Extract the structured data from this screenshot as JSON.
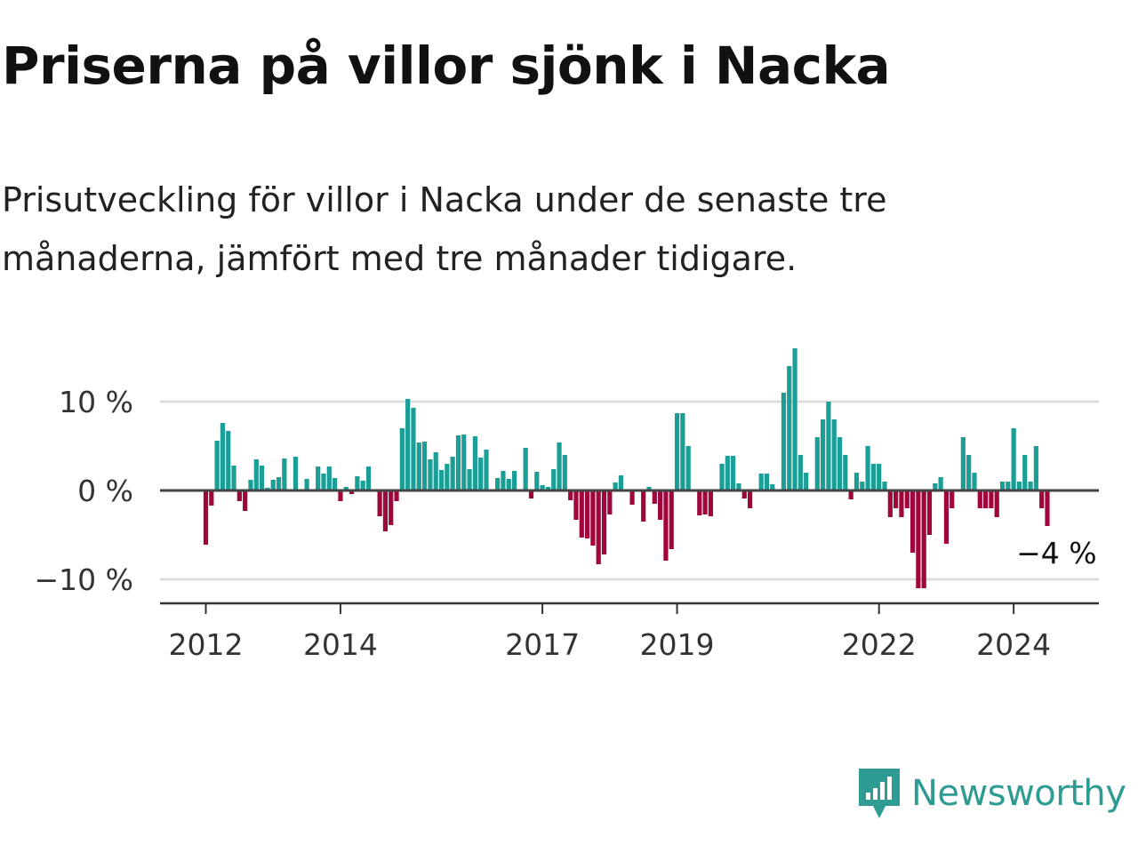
{
  "header": {
    "title": "Priserna på villor sjönk i Nacka",
    "subtitle": "Prisutveckling för villor i Nacka under de senaste tre månaderna, jämfört med tre månader tidigare."
  },
  "brand": {
    "name": "Newsworthy",
    "color": "#2e9c93"
  },
  "colors": {
    "positive": "#1a9e96",
    "negative": "#a0063b",
    "zero_line": "#444444",
    "grid": "#dddddd"
  },
  "chart_data": {
    "type": "bar",
    "title": "Priserna på villor sjönk i Nacka",
    "subtitle": "Prisutveckling för villor i Nacka under de senaste tre månaderna, jämfört med tre månader tidigare.",
    "xlabel": "",
    "ylabel": "",
    "unit": "%",
    "ylim": [
      -13,
      17
    ],
    "y_ticks": [
      10,
      0,
      -10
    ],
    "y_tick_labels": [
      "10 %",
      "0 %",
      "−10 %"
    ],
    "grid": true,
    "start": "2012-01",
    "x_ticks": [
      {
        "label": "2012",
        "index": 0
      },
      {
        "label": "2014",
        "index": 24
      },
      {
        "label": "2017",
        "index": 60
      },
      {
        "label": "2019",
        "index": 84
      },
      {
        "label": "2022",
        "index": 120
      },
      {
        "label": "2024",
        "index": 144
      }
    ],
    "values": [
      -6.1,
      -1.7,
      5.6,
      7.6,
      6.7,
      2.8,
      -1.2,
      -2.3,
      1.2,
      3.5,
      2.8,
      0.3,
      1.2,
      1.5,
      3.6,
      0.1,
      3.8,
      0.1,
      1.3,
      0.1,
      2.7,
      1.9,
      2.7,
      1.4,
      -1.2,
      0.4,
      -0.4,
      1.6,
      1.1,
      2.7,
      0.1,
      -2.9,
      -4.6,
      -3.9,
      -1.2,
      7.0,
      10.3,
      9.3,
      5.4,
      5.5,
      3.5,
      4.3,
      2.3,
      3.0,
      3.8,
      6.2,
      6.3,
      2.4,
      6.1,
      3.7,
      4.6,
      0.1,
      1.4,
      2.2,
      1.3,
      2.2,
      0.1,
      4.8,
      -0.9,
      2.1,
      0.6,
      0.4,
      2.4,
      5.4,
      4.0,
      -1.1,
      -3.3,
      -5.3,
      -5.4,
      -6.2,
      -8.3,
      -7.2,
      -2.7,
      0.9,
      1.7,
      0.1,
      -1.6,
      0.1,
      -3.5,
      0.4,
      -1.5,
      -3.3,
      -7.9,
      -6.6,
      8.7,
      8.7,
      5.0,
      0.1,
      -2.8,
      -2.7,
      -2.9,
      0.1,
      3.0,
      3.9,
      3.9,
      0.8,
      -0.9,
      -2.0,
      0.1,
      1.9,
      1.9,
      0.7,
      0.1,
      11.0,
      14.0,
      16.0,
      4.0,
      2.0,
      0.1,
      6.0,
      8.0,
      10.0,
      8.0,
      6.0,
      4.0,
      -1.0,
      2.0,
      1.0,
      5.0,
      3.0,
      3.0,
      1.0,
      -3.0,
      -2.0,
      -3.0,
      -2.0,
      -7.0,
      -11.0,
      -11.0,
      -5.0,
      0.8,
      1.5,
      -6.0,
      -2.0,
      0.1,
      6.0,
      4.0,
      2.0,
      -2.0,
      -2.0,
      -2.0,
      -3.0,
      1.0,
      1.0,
      7.0,
      1.0,
      4.0,
      1.0,
      5.0,
      -2.0,
      -4.0
    ],
    "annotations": [
      {
        "text": "−4 %",
        "index": 152
      }
    ]
  }
}
